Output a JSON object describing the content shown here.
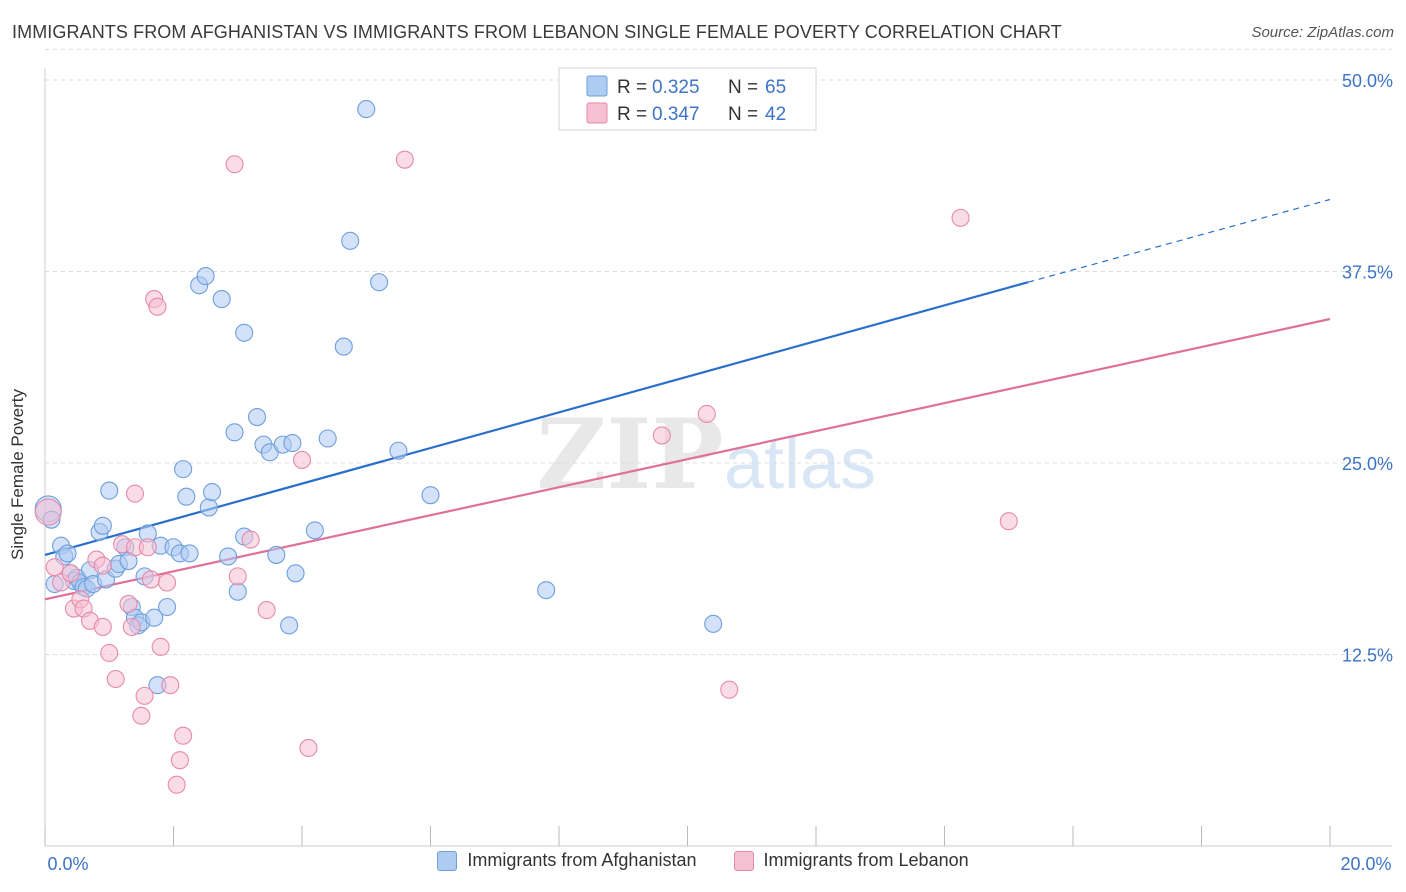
{
  "title": "IMMIGRANTS FROM AFGHANISTAN VS IMMIGRANTS FROM LEBANON SINGLE FEMALE POVERTY CORRELATION CHART",
  "source": "Source: ZipAtlas.com",
  "watermark": {
    "zip": "ZIP",
    "atlas": "atlas"
  },
  "colors": {
    "blue_fill": "#aecbf2",
    "blue_stroke": "#6e9fdc",
    "blue_line": "#2a6fcc",
    "pink_fill": "#f6c0d3",
    "pink_stroke": "#e68aaa",
    "pink_line": "#e0709a",
    "tick_label": "#3d74c6",
    "grid": "#dcdcdc"
  },
  "legend_top": [
    {
      "r_label": "R = ",
      "r_value": "0.325",
      "n_label": "N = ",
      "n_value": "65"
    },
    {
      "r_label": "R = ",
      "r_value": "0.347",
      "n_label": "N = ",
      "n_value": "42"
    }
  ],
  "legend_bottom": [
    "Immigrants from Afghanistan",
    "Immigrants from Lebanon"
  ],
  "chart_data": {
    "type": "scatter",
    "title": "IMMIGRANTS FROM AFGHANISTAN VS IMMIGRANTS FROM LEBANON SINGLE FEMALE POVERTY CORRELATION CHART",
    "xlabel": "",
    "ylabel": "Single Female Poverty",
    "xlim": [
      0,
      20
    ],
    "ylim": [
      0,
      50
    ],
    "x_tick_labels": [
      "0.0%",
      "20.0%"
    ],
    "y_ticks": [
      12.5,
      25.0,
      37.5,
      50.0
    ],
    "y_tick_labels": [
      "12.5%",
      "25.0%",
      "37.5%",
      "50.0%"
    ],
    "grid": true,
    "legend_position": "top-center",
    "series": [
      {
        "name": "Immigrants from Afghanistan",
        "R": 0.325,
        "N": 65,
        "trend": {
          "x": [
            0,
            15.3
          ],
          "y": [
            19.0,
            36.8
          ],
          "dashed_to": [
            20,
            42.2
          ]
        },
        "points": [
          [
            0.05,
            22.0
          ],
          [
            0.1,
            21.3
          ],
          [
            0.15,
            17.1
          ],
          [
            0.25,
            19.6
          ],
          [
            0.3,
            18.9
          ],
          [
            0.35,
            19.1
          ],
          [
            0.4,
            17.8
          ],
          [
            0.45,
            17.3
          ],
          [
            0.5,
            17.5
          ],
          [
            0.55,
            17.2
          ],
          [
            0.6,
            16.9
          ],
          [
            0.65,
            16.8
          ],
          [
            0.7,
            18.0
          ],
          [
            0.75,
            17.1
          ],
          [
            0.85,
            20.5
          ],
          [
            0.9,
            20.9
          ],
          [
            0.95,
            17.4
          ],
          [
            1.0,
            23.2
          ],
          [
            1.1,
            18.1
          ],
          [
            1.15,
            18.4
          ],
          [
            1.25,
            19.5
          ],
          [
            1.3,
            18.6
          ],
          [
            1.35,
            15.6
          ],
          [
            1.4,
            14.9
          ],
          [
            1.45,
            14.4
          ],
          [
            1.5,
            14.6
          ],
          [
            1.55,
            17.6
          ],
          [
            1.6,
            20.4
          ],
          [
            1.7,
            14.9
          ],
          [
            1.75,
            10.5
          ],
          [
            1.8,
            19.6
          ],
          [
            1.9,
            15.6
          ],
          [
            2.0,
            19.5
          ],
          [
            2.1,
            19.1
          ],
          [
            2.15,
            24.6
          ],
          [
            2.2,
            22.8
          ],
          [
            2.25,
            19.1
          ],
          [
            2.4,
            36.6
          ],
          [
            2.5,
            37.2
          ],
          [
            2.55,
            22.1
          ],
          [
            2.6,
            23.1
          ],
          [
            2.75,
            35.7
          ],
          [
            2.85,
            18.9
          ],
          [
            2.95,
            27.0
          ],
          [
            3.0,
            16.6
          ],
          [
            3.1,
            20.2
          ],
          [
            3.1,
            33.5
          ],
          [
            3.3,
            28.0
          ],
          [
            3.4,
            26.2
          ],
          [
            3.5,
            25.7
          ],
          [
            3.6,
            19.0
          ],
          [
            3.7,
            26.2
          ],
          [
            3.8,
            14.4
          ],
          [
            3.85,
            26.3
          ],
          [
            3.9,
            17.8
          ],
          [
            4.2,
            20.6
          ],
          [
            4.4,
            26.6
          ],
          [
            4.65,
            32.6
          ],
          [
            4.75,
            39.5
          ],
          [
            5.0,
            48.1
          ],
          [
            5.2,
            36.8
          ],
          [
            5.5,
            25.8
          ],
          [
            6.0,
            22.9
          ],
          [
            7.8,
            16.7
          ],
          [
            10.4,
            14.5
          ]
        ]
      },
      {
        "name": "Immigrants from Lebanon",
        "R": 0.347,
        "N": 42,
        "trend": {
          "x": [
            0,
            20
          ],
          "y": [
            16.1,
            34.4
          ]
        },
        "points": [
          [
            0.05,
            21.8
          ],
          [
            0.15,
            18.2
          ],
          [
            0.25,
            17.2
          ],
          [
            0.4,
            17.8
          ],
          [
            0.45,
            15.5
          ],
          [
            0.55,
            16.1
          ],
          [
            0.6,
            15.5
          ],
          [
            0.7,
            14.7
          ],
          [
            0.8,
            18.7
          ],
          [
            0.9,
            18.3
          ],
          [
            0.9,
            14.3
          ],
          [
            1.0,
            12.6
          ],
          [
            1.1,
            10.9
          ],
          [
            1.2,
            19.7
          ],
          [
            1.3,
            15.8
          ],
          [
            1.35,
            14.3
          ],
          [
            1.4,
            19.5
          ],
          [
            1.4,
            23.0
          ],
          [
            1.5,
            8.5
          ],
          [
            1.55,
            9.8
          ],
          [
            1.6,
            19.5
          ],
          [
            1.65,
            17.4
          ],
          [
            1.7,
            35.7
          ],
          [
            1.75,
            35.2
          ],
          [
            1.8,
            13.0
          ],
          [
            1.9,
            17.2
          ],
          [
            1.95,
            10.5
          ],
          [
            2.05,
            4.0
          ],
          [
            2.1,
            5.6
          ],
          [
            2.15,
            7.2
          ],
          [
            2.95,
            44.5
          ],
          [
            3.0,
            17.6
          ],
          [
            3.2,
            20.0
          ],
          [
            3.45,
            15.4
          ],
          [
            4.0,
            25.2
          ],
          [
            4.1,
            6.4
          ],
          [
            5.6,
            44.8
          ],
          [
            9.6,
            26.8
          ],
          [
            10.3,
            28.2
          ],
          [
            10.65,
            10.2
          ],
          [
            14.25,
            41.0
          ],
          [
            15.0,
            21.2
          ]
        ]
      }
    ]
  }
}
